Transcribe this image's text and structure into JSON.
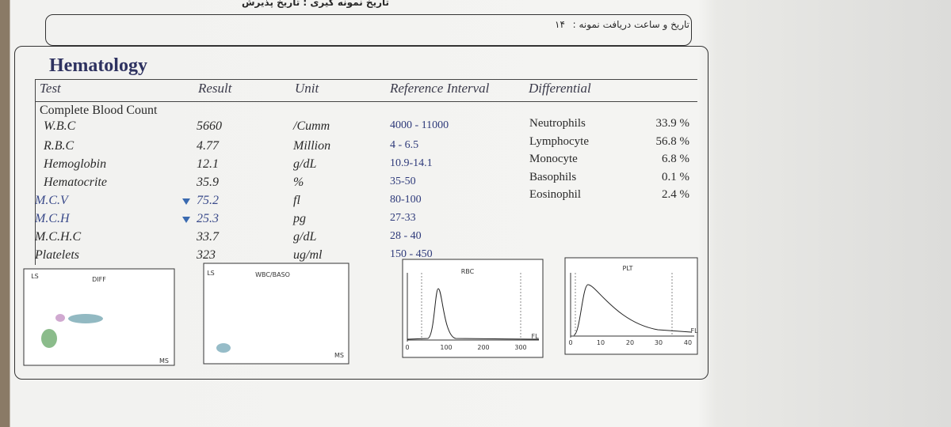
{
  "header": {
    "sampling_line": "تاریخ نمونه گیری : تاریخ پذیرش",
    "received_label": "تاریخ و ساعت دریافت نمونه :",
    "received_value": "۱۴"
  },
  "section": "Hematology",
  "columns": [
    "Test",
    "Result",
    "Unit",
    "Reference Interval",
    "Differential"
  ],
  "group": "Complete Blood Count",
  "rows": [
    {
      "test": "W.B.C",
      "result": "5660",
      "unit": "/Cumm",
      "reference": "4000 - 11000"
    },
    {
      "test": "R.B.C",
      "result": "4.77",
      "unit": "Million",
      "reference": "4 - 6.5"
    },
    {
      "test": "Hemoglobin",
      "result": "12.1",
      "unit": "g/dL",
      "reference": "10.9-14.1"
    },
    {
      "test": "Hematocrite",
      "result": "35.9",
      "unit": "%",
      "reference": "35-50"
    },
    {
      "test": "M.C.V",
      "result": "75.2",
      "unit": "fl",
      "reference": "80-100",
      "low": true
    },
    {
      "test": "M.C.H",
      "result": "25.3",
      "unit": "pg",
      "reference": "27-33",
      "low": true
    },
    {
      "test": "M.C.H.C",
      "result": "33.7",
      "unit": "g/dL",
      "reference": "28 - 40"
    },
    {
      "test": "Platelets",
      "result": "323",
      "unit": "ug/ml",
      "reference": "150 - 450"
    }
  ],
  "differential": [
    {
      "name": "Neutrophils",
      "value": "33.9 %"
    },
    {
      "name": "Lymphocyte",
      "value": "56.8 %"
    },
    {
      "name": "Monocyte",
      "value": "6.8 %"
    },
    {
      "name": "Basophils",
      "value": "0.1 %"
    },
    {
      "name": "Eosinophil",
      "value": "2.4 %"
    }
  ],
  "plots": [
    {
      "title": "DIFF",
      "y_label": "LS",
      "x_label": "MS"
    },
    {
      "title": "WBC/BASO",
      "y_label": "LS",
      "x_label": "MS"
    },
    {
      "title": "RBC",
      "ticks": [
        "0",
        "100",
        "200",
        "300"
      ],
      "unit": "FL"
    },
    {
      "title": "PLT",
      "ticks": [
        "0",
        "10",
        "20",
        "30",
        "40"
      ],
      "unit": "FL"
    }
  ]
}
